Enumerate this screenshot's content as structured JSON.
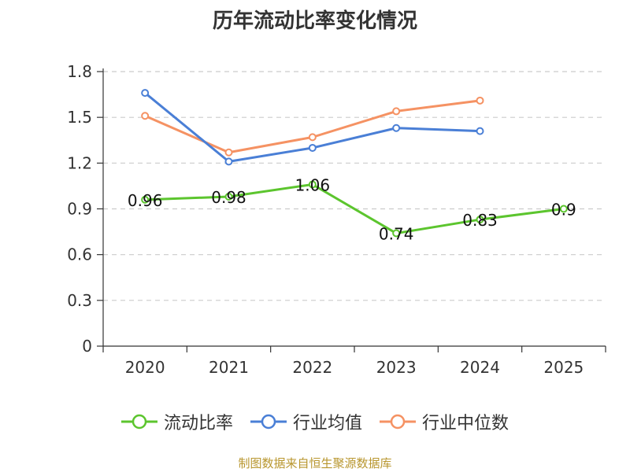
{
  "chart_data": {
    "type": "line",
    "title": "历年流动比率变化情况",
    "categories": [
      "2020",
      "2021",
      "2022",
      "2023",
      "2024",
      "2025"
    ],
    "ylim": [
      0,
      1.8
    ],
    "yticks": [
      "0",
      "0.3",
      "0.6",
      "0.9",
      "1.2",
      "1.5",
      "1.8"
    ],
    "grid": true,
    "legend_position": "bottom",
    "series": [
      {
        "name": "流动比率",
        "color": "#5cc52e",
        "values": [
          0.96,
          0.98,
          1.06,
          0.74,
          0.83,
          0.9
        ],
        "labels": [
          "0.96",
          "0.98",
          "1.06",
          "0.74",
          "0.83",
          "0.9"
        ]
      },
      {
        "name": "行业均值",
        "color": "#4a7fd6",
        "values": [
          1.66,
          1.21,
          1.3,
          1.43,
          1.41,
          null
        ]
      },
      {
        "name": "行业中位数",
        "color": "#f59263",
        "values": [
          1.51,
          1.27,
          1.37,
          1.54,
          1.61,
          null
        ]
      }
    ]
  },
  "source": "制图数据来自恒生聚源数据库"
}
